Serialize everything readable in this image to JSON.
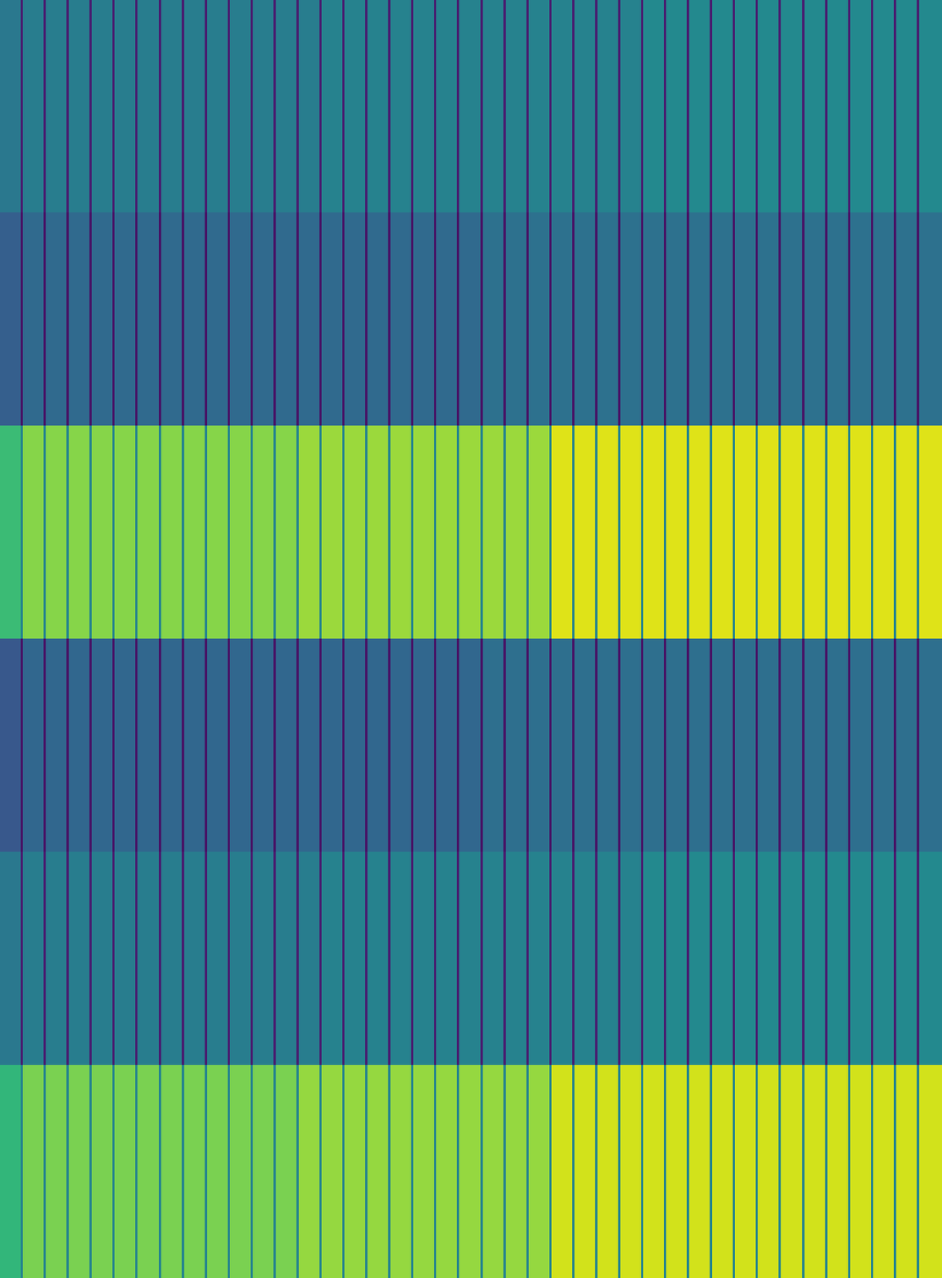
{
  "chart_data": {
    "type": "heatmap",
    "tick_labels": false,
    "color": "viridis",
    "color_range": [
      0,
      1
    ],
    "xlim": [
      0,
      41
    ],
    "ylim": [
      6,
      0
    ],
    "x": [
      0,
      0.9,
      1,
      1.9,
      2,
      2.9,
      3,
      3.9,
      4,
      4.9,
      5,
      5.9,
      6,
      6.9,
      7,
      7.9,
      8,
      8.9,
      9,
      9.9,
      10,
      10.9,
      11,
      11.9,
      12,
      12.9,
      13,
      13.9,
      14,
      14.9,
      15,
      15.9,
      16,
      16.9,
      17,
      17.9,
      18,
      18.9,
      19,
      19.9,
      20,
      20.9,
      21,
      21.9,
      22,
      22.9,
      23,
      23.9,
      24,
      24.9,
      25,
      25.9,
      26,
      26.9,
      27,
      27.9,
      28,
      28.9,
      29,
      29.9,
      30,
      30.9,
      31,
      31.9,
      32,
      32.9,
      33,
      33.9,
      34,
      34.9,
      35,
      35.9,
      36,
      36.9,
      37,
      37.9,
      38,
      38.9,
      39,
      39.9,
      40,
      41
    ],
    "y": [
      0,
      1,
      2,
      3,
      4,
      5,
      6
    ],
    "cells": [
      [
        0.4,
        0.08,
        0.42,
        0.08,
        0.42,
        0.08,
        0.42,
        0.08,
        0.42,
        0.08,
        0.42,
        0.08,
        0.42,
        0.08,
        0.42,
        0.08,
        0.42,
        0.08,
        0.42,
        0.08,
        0.42,
        0.08,
        0.42,
        0.08,
        0.42,
        0.08,
        0.42,
        0.08,
        0.44,
        0.08,
        0.44,
        0.08,
        0.44,
        0.08,
        0.44,
        0.08,
        0.44,
        0.08,
        0.44,
        0.08,
        0.44,
        0.08,
        0.44,
        0.08,
        0.44,
        0.08,
        0.44,
        0.08,
        0.44,
        0.08,
        0.44,
        0.08,
        0.44,
        0.08,
        0.44,
        0.08,
        0.47,
        0.08,
        0.47,
        0.08,
        0.47,
        0.08,
        0.47,
        0.08,
        0.47,
        0.08,
        0.47,
        0.08,
        0.47,
        0.08,
        0.47,
        0.08,
        0.47,
        0.08,
        0.47,
        0.08,
        0.47,
        0.08,
        0.47,
        0.08,
        0.47
      ],
      [
        0.3,
        0.05,
        0.34,
        0.05,
        0.34,
        0.05,
        0.34,
        0.05,
        0.34,
        0.05,
        0.34,
        0.05,
        0.34,
        0.05,
        0.34,
        0.05,
        0.34,
        0.05,
        0.34,
        0.05,
        0.34,
        0.05,
        0.34,
        0.05,
        0.34,
        0.05,
        0.34,
        0.05,
        0.34,
        0.05,
        0.34,
        0.05,
        0.34,
        0.05,
        0.34,
        0.05,
        0.34,
        0.05,
        0.34,
        0.05,
        0.34,
        0.05,
        0.37,
        0.05,
        0.37,
        0.05,
        0.37,
        0.05,
        0.37,
        0.05,
        0.37,
        0.05,
        0.37,
        0.05,
        0.37,
        0.05,
        0.37,
        0.05,
        0.37,
        0.05,
        0.37,
        0.05,
        0.37,
        0.05,
        0.37,
        0.05,
        0.37,
        0.05,
        0.37,
        0.05,
        0.37,
        0.05,
        0.37,
        0.05,
        0.37,
        0.05,
        0.37,
        0.05,
        0.37,
        0.05,
        0.37
      ],
      [
        0.68,
        0.45,
        0.82,
        0.45,
        0.82,
        0.45,
        0.82,
        0.45,
        0.82,
        0.45,
        0.82,
        0.45,
        0.82,
        0.45,
        0.82,
        0.45,
        0.82,
        0.45,
        0.82,
        0.45,
        0.82,
        0.45,
        0.82,
        0.45,
        0.82,
        0.45,
        0.85,
        0.45,
        0.85,
        0.45,
        0.85,
        0.45,
        0.85,
        0.45,
        0.85,
        0.45,
        0.85,
        0.45,
        0.85,
        0.45,
        0.85,
        0.45,
        0.85,
        0.45,
        0.85,
        0.45,
        0.85,
        0.45,
        0.95,
        0.45,
        0.95,
        0.45,
        0.95,
        0.45,
        0.95,
        0.45,
        0.95,
        0.45,
        0.95,
        0.45,
        0.95,
        0.45,
        0.95,
        0.45,
        0.95,
        0.45,
        0.95,
        0.45,
        0.95,
        0.45,
        0.95,
        0.45,
        0.95,
        0.45,
        0.95,
        0.45,
        0.95,
        0.45,
        0.95,
        0.45,
        0.95
      ],
      [
        0.27,
        0.05,
        0.33,
        0.05,
        0.33,
        0.05,
        0.33,
        0.05,
        0.33,
        0.05,
        0.33,
        0.05,
        0.33,
        0.05,
        0.33,
        0.05,
        0.33,
        0.05,
        0.33,
        0.05,
        0.33,
        0.05,
        0.33,
        0.05,
        0.33,
        0.05,
        0.33,
        0.05,
        0.33,
        0.05,
        0.33,
        0.05,
        0.33,
        0.05,
        0.33,
        0.05,
        0.33,
        0.05,
        0.33,
        0.05,
        0.33,
        0.05,
        0.36,
        0.05,
        0.36,
        0.05,
        0.36,
        0.05,
        0.36,
        0.05,
        0.36,
        0.05,
        0.36,
        0.05,
        0.36,
        0.05,
        0.36,
        0.05,
        0.36,
        0.05,
        0.36,
        0.05,
        0.36,
        0.05,
        0.36,
        0.05,
        0.36,
        0.05,
        0.36,
        0.05,
        0.36,
        0.05,
        0.36,
        0.05,
        0.36,
        0.05,
        0.36,
        0.05,
        0.36,
        0.05,
        0.36
      ],
      [
        0.4,
        0.08,
        0.42,
        0.08,
        0.42,
        0.08,
        0.42,
        0.08,
        0.42,
        0.08,
        0.42,
        0.08,
        0.42,
        0.08,
        0.42,
        0.08,
        0.42,
        0.08,
        0.42,
        0.08,
        0.42,
        0.08,
        0.42,
        0.08,
        0.42,
        0.08,
        0.42,
        0.08,
        0.44,
        0.08,
        0.44,
        0.08,
        0.44,
        0.08,
        0.44,
        0.08,
        0.44,
        0.08,
        0.44,
        0.08,
        0.44,
        0.08,
        0.44,
        0.08,
        0.44,
        0.08,
        0.44,
        0.08,
        0.44,
        0.08,
        0.44,
        0.08,
        0.44,
        0.08,
        0.44,
        0.08,
        0.47,
        0.08,
        0.47,
        0.08,
        0.47,
        0.08,
        0.47,
        0.08,
        0.47,
        0.08,
        0.47,
        0.08,
        0.47,
        0.08,
        0.47,
        0.08,
        0.47,
        0.08,
        0.47,
        0.08,
        0.47,
        0.08,
        0.47,
        0.08,
        0.47
      ],
      [
        0.66,
        0.45,
        0.8,
        0.45,
        0.8,
        0.45,
        0.8,
        0.45,
        0.8,
        0.45,
        0.8,
        0.45,
        0.8,
        0.45,
        0.8,
        0.45,
        0.8,
        0.45,
        0.8,
        0.45,
        0.8,
        0.45,
        0.8,
        0.45,
        0.8,
        0.45,
        0.84,
        0.45,
        0.84,
        0.45,
        0.84,
        0.45,
        0.84,
        0.45,
        0.84,
        0.45,
        0.84,
        0.45,
        0.84,
        0.45,
        0.84,
        0.45,
        0.84,
        0.45,
        0.84,
        0.45,
        0.84,
        0.45,
        0.93,
        0.45,
        0.93,
        0.45,
        0.93,
        0.45,
        0.93,
        0.45,
        0.93,
        0.45,
        0.93,
        0.45,
        0.93,
        0.45,
        0.93,
        0.45,
        0.93,
        0.45,
        0.93,
        0.45,
        0.93,
        0.45,
        0.93,
        0.45,
        0.93,
        0.45,
        0.93,
        0.45,
        0.93,
        0.45,
        0.93,
        0.45,
        0.93
      ]
    ]
  }
}
